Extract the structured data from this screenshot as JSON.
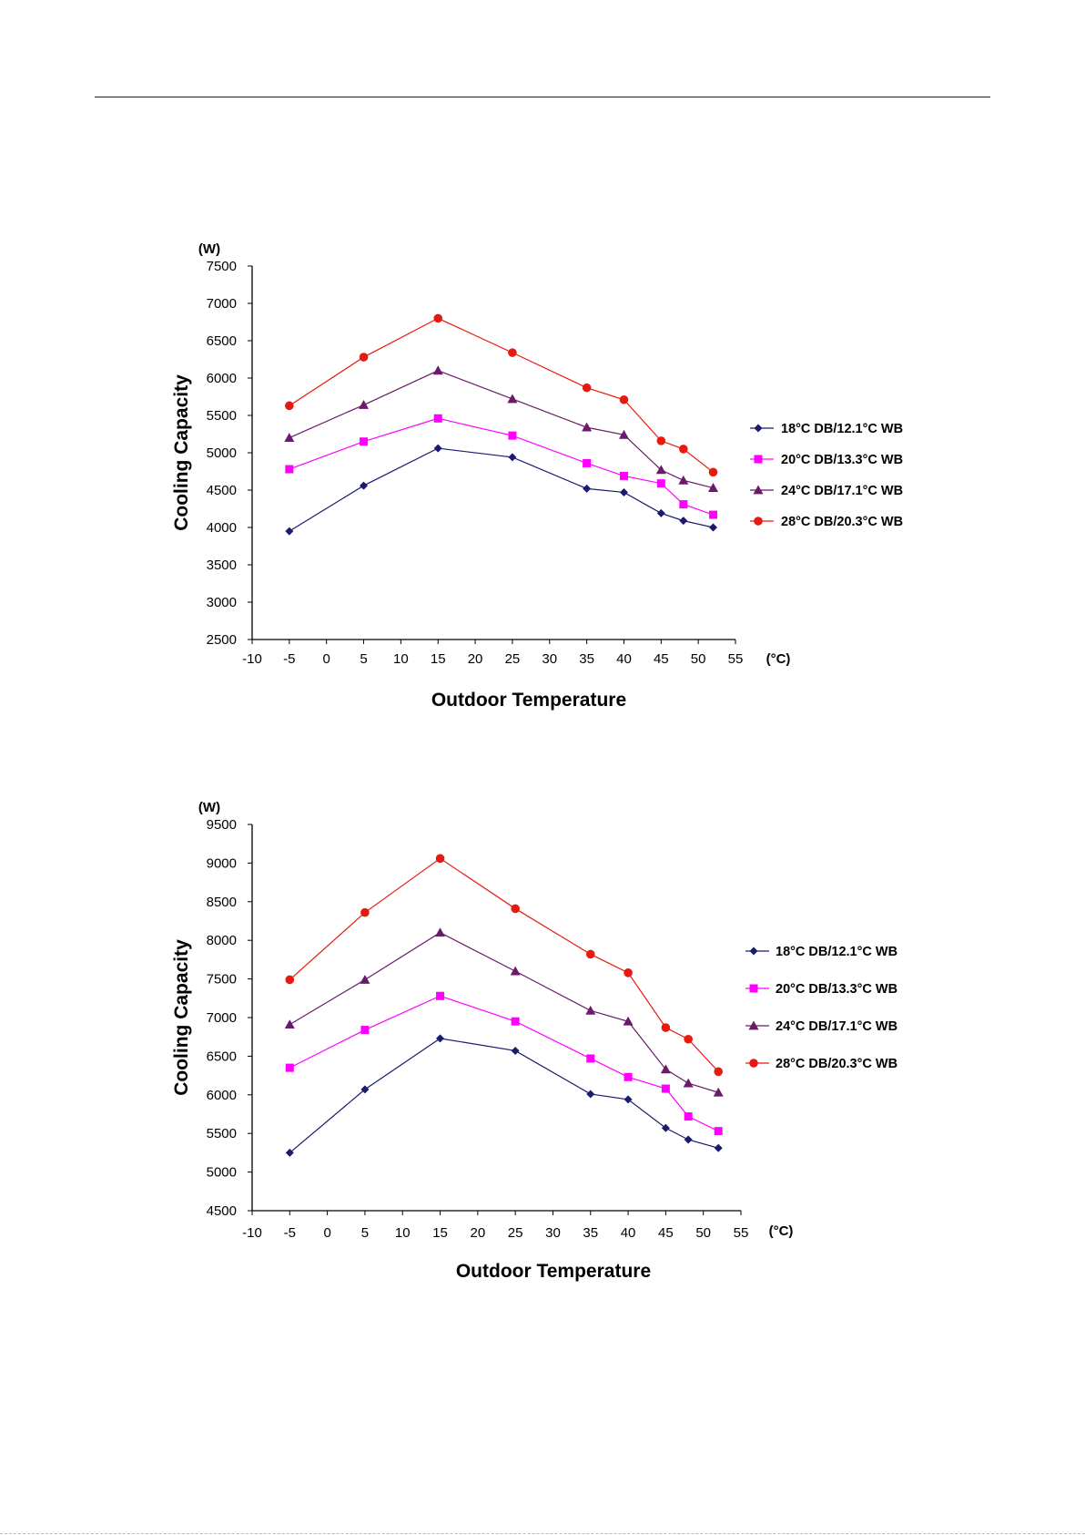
{
  "chart_data": [
    {
      "type": "line",
      "ylabel": "Cooling Capacity",
      "yunit": "(W)",
      "xlabel": "Outdoor Temperature",
      "xunit": "(°C)",
      "xlim": [
        -10,
        55
      ],
      "ylim": [
        2500,
        7500
      ],
      "xticks": [
        -10,
        -5,
        0,
        5,
        10,
        15,
        20,
        25,
        30,
        35,
        40,
        45,
        50,
        55
      ],
      "yticks": [
        2500,
        3000,
        3500,
        4000,
        4500,
        5000,
        5500,
        6000,
        6500,
        7000,
        7500
      ],
      "legend_position": "right",
      "grid": false,
      "x": [
        -5,
        5,
        15,
        25,
        35,
        40,
        45,
        48,
        52
      ],
      "series": [
        {
          "name": "18°C DB/12.1°C WB",
          "color": "#1a1a6e",
          "marker": "diamond",
          "values": [
            3950,
            4560,
            5060,
            4940,
            4520,
            4470,
            4190,
            4090,
            4000
          ]
        },
        {
          "name": "20°C DB/13.3°C WB",
          "color": "#ff00ff",
          "marker": "square",
          "values": [
            4780,
            5150,
            5460,
            5230,
            4860,
            4690,
            4590,
            4310,
            4170
          ]
        },
        {
          "name": "24°C DB/17.1°C WB",
          "color": "#6a1a6a",
          "marker": "triangle",
          "values": [
            5200,
            5640,
            6100,
            5720,
            5340,
            5240,
            4770,
            4630,
            4530
          ]
        },
        {
          "name": "28°C DB/20.3°C WB",
          "color": "#e8190e",
          "marker": "circle",
          "values": [
            5630,
            6280,
            6800,
            6340,
            5870,
            5710,
            5160,
            5050,
            4740
          ]
        }
      ]
    },
    {
      "type": "line",
      "ylabel": "Cooling Capacity",
      "yunit": "(W)",
      "xlabel": "Outdoor Temperature",
      "xunit": "(°C)",
      "xlim": [
        -10,
        55
      ],
      "ylim": [
        4500,
        9500
      ],
      "xticks": [
        -10,
        -5,
        0,
        5,
        10,
        15,
        20,
        25,
        30,
        35,
        40,
        45,
        50,
        55
      ],
      "yticks": [
        4500,
        5000,
        5500,
        6000,
        6500,
        7000,
        7500,
        8000,
        8500,
        9000,
        9500
      ],
      "legend_position": "right",
      "grid": false,
      "x": [
        -5,
        5,
        15,
        25,
        35,
        40,
        45,
        48,
        52
      ],
      "series": [
        {
          "name": "18°C DB/12.1°C WB",
          "color": "#1a1a6e",
          "marker": "diamond",
          "values": [
            5250,
            6070,
            6730,
            6570,
            6010,
            5940,
            5570,
            5420,
            5310
          ]
        },
        {
          "name": "20°C DB/13.3°C WB",
          "color": "#ff00ff",
          "marker": "square",
          "values": [
            6350,
            6840,
            7280,
            6950,
            6470,
            6230,
            6080,
            5720,
            5530
          ]
        },
        {
          "name": "24°C DB/17.1°C WB",
          "color": "#6a1a6a",
          "marker": "triangle",
          "values": [
            6910,
            7490,
            8100,
            7600,
            7090,
            6950,
            6330,
            6150,
            6030
          ]
        },
        {
          "name": "28°C DB/20.3°C WB",
          "color": "#e8190e",
          "marker": "circle",
          "values": [
            7490,
            8360,
            9060,
            8410,
            7820,
            7580,
            6870,
            6720,
            6300
          ]
        }
      ]
    }
  ]
}
